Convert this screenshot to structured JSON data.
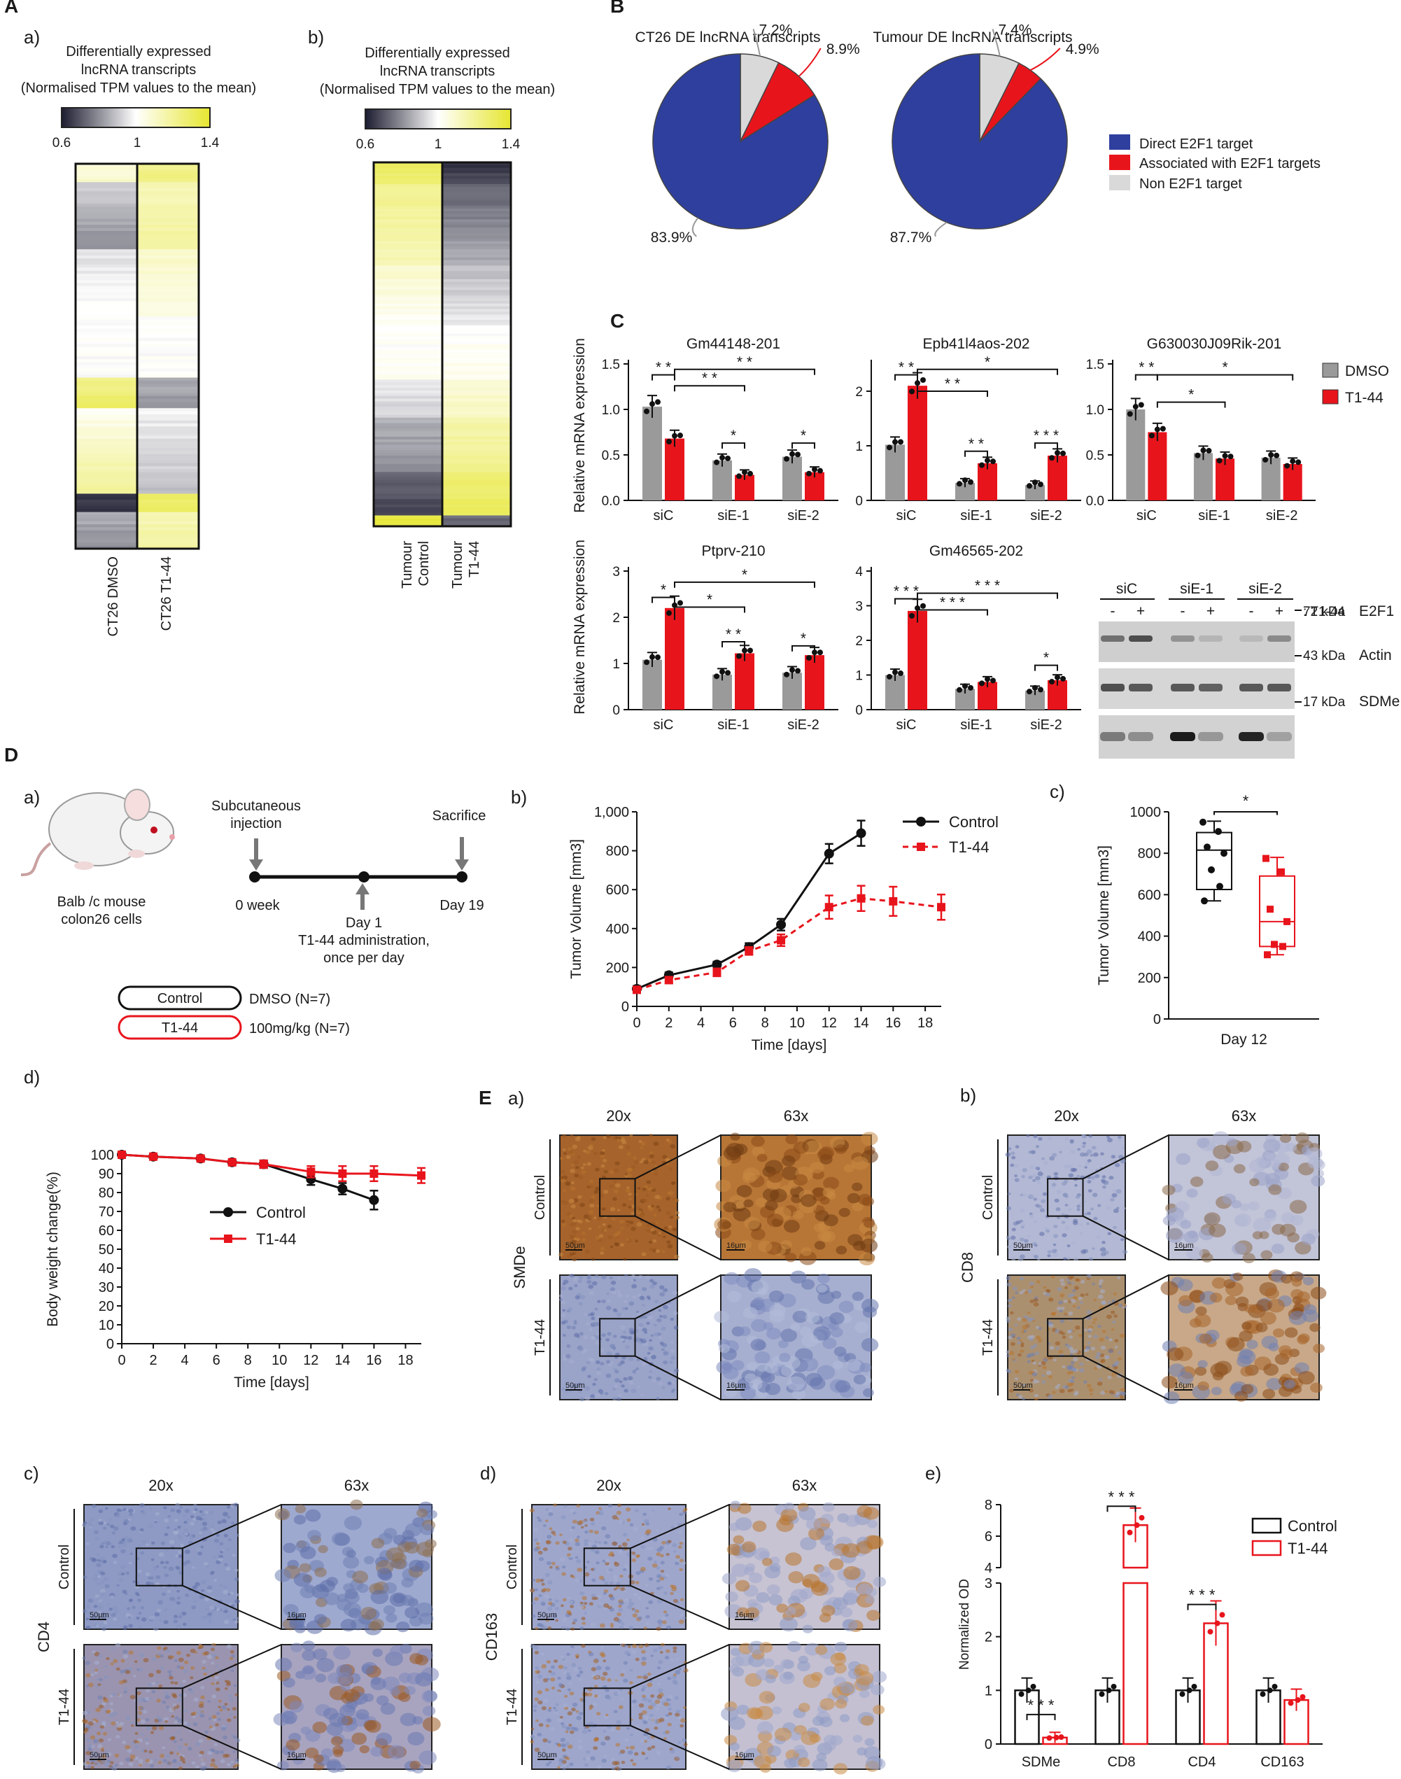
{
  "panel_letters": {
    "A": "A",
    "B": "B",
    "C": "C",
    "D": "D",
    "E": "E"
  },
  "sub_letters": {
    "a": "a)",
    "b": "b)",
    "c": "c)",
    "d": "d)",
    "e": "e)"
  },
  "colors": {
    "dmso": "#9a9a9a",
    "t144": "#e8141c",
    "e2f1_direct": "#2e3f9e",
    "e2f1_assoc": "#e8141c",
    "non_e2f1": "#d9d9d9"
  },
  "panelA": {
    "title_line1": "Differentially expressed",
    "title_line2": "lncRNA transcripts",
    "title_line3": "(Normalised TPM values to the mean)",
    "scale": [
      "0.6",
      "1",
      "1.4"
    ],
    "a_columns": [
      "CT26 DMSO",
      "CT26 T1-44"
    ],
    "b_columns": [
      [
        "Tumour",
        "Control"
      ],
      [
        "Tumour",
        "T1-44"
      ]
    ]
  },
  "panelB": {
    "chart_data": [
      {
        "type": "pie",
        "title": "CT26 DE lncRNA transcripts",
        "labels": [
          "Direct E2F1 target",
          "Associated with E2F1 targets",
          "Non E2F1 target"
        ],
        "values": [
          83.9,
          8.9,
          7.2
        ],
        "value_labels": [
          "83.9%",
          "8.9%",
          "7.2%"
        ]
      },
      {
        "type": "pie",
        "title": "Tumour DE lncRNA transcripts",
        "labels": [
          "Direct E2F1 target",
          "Associated with E2F1 targets",
          "Non E2F1 target"
        ],
        "values": [
          87.7,
          4.9,
          7.4
        ],
        "value_labels": [
          "87.7%",
          "4.9%",
          "7.4%"
        ]
      }
    ],
    "legend": [
      "Direct E2F1 target",
      "Associated with E2F1 targets",
      "Non E2F1 target"
    ]
  },
  "panelC": {
    "ylabel": "Relative mRNA expression",
    "legend": [
      "DMSO",
      "T1-44"
    ],
    "categories": [
      "siC",
      "siE-1",
      "siE-2"
    ],
    "chart_data": [
      {
        "type": "bar",
        "title": "Gm44148-201",
        "ylim": [
          0,
          1.5
        ],
        "ticks": [
          "0.0",
          "0.5",
          "1.0",
          "1.5"
        ],
        "categories": [
          "siC",
          "siE-1",
          "siE-2"
        ],
        "series": [
          {
            "name": "DMSO",
            "values": [
              1.03,
              0.44,
              0.48
            ]
          },
          {
            "name": "T1-44",
            "values": [
              0.68,
              0.28,
              0.31
            ]
          }
        ],
        "sig": [
          "* *",
          "* *",
          "* *",
          "*",
          "*"
        ]
      },
      {
        "type": "bar",
        "title": "Epb41l4aos-202",
        "ylim": [
          0,
          2.5
        ],
        "ticks": [
          "0",
          "1",
          "2"
        ],
        "categories": [
          "siC",
          "siE-1",
          "siE-2"
        ],
        "series": [
          {
            "name": "DMSO",
            "values": [
              1.02,
              0.32,
              0.28
            ]
          },
          {
            "name": "T1-44",
            "values": [
              2.1,
              0.68,
              0.82
            ]
          }
        ],
        "sig": [
          "* *",
          "* *",
          "*",
          "* *",
          "* * *"
        ]
      },
      {
        "type": "bar",
        "title": "G630030J09Rik-201",
        "ylim": [
          0,
          1.5
        ],
        "ticks": [
          "0.0",
          "0.5",
          "1.0",
          "1.5"
        ],
        "categories": [
          "siC",
          "siE-1",
          "siE-2"
        ],
        "series": [
          {
            "name": "DMSO",
            "values": [
              1.0,
              0.52,
              0.47
            ]
          },
          {
            "name": "T1-44",
            "values": [
              0.75,
              0.46,
              0.4
            ]
          }
        ],
        "sig": [
          "* *",
          "*",
          "*"
        ]
      },
      {
        "type": "bar",
        "title": "Ptprv-210",
        "ylim": [
          0,
          3
        ],
        "ticks": [
          "0",
          "1",
          "2",
          "3"
        ],
        "categories": [
          "siC",
          "siE-1",
          "siE-2"
        ],
        "series": [
          {
            "name": "DMSO",
            "values": [
              1.08,
              0.76,
              0.8
            ]
          },
          {
            "name": "T1-44",
            "values": [
              2.2,
              1.22,
              1.18
            ]
          }
        ],
        "sig": [
          "*",
          "*",
          "*",
          "* *",
          "*"
        ]
      },
      {
        "type": "bar",
        "title": "Gm46565-202",
        "ylim": [
          0,
          4
        ],
        "ticks": [
          "0",
          "1",
          "2",
          "3",
          "4"
        ],
        "categories": [
          "siC",
          "siE-1",
          "siE-2"
        ],
        "series": [
          {
            "name": "DMSO",
            "values": [
              1.0,
              0.6,
              0.55
            ]
          },
          {
            "name": "T1-44",
            "values": [
              2.85,
              0.8,
              0.85
            ]
          }
        ],
        "sig": [
          "* * *",
          "* * *",
          "* * *",
          "*"
        ]
      }
    ],
    "blot": {
      "groups": [
        "siC",
        "siE-1",
        "siE-2"
      ],
      "signs": [
        "-",
        "+",
        "-",
        "+",
        "-",
        "+"
      ],
      "treat": ": T1-44",
      "bands": [
        {
          "kda": "72 kDa",
          "name": "E2F1"
        },
        {
          "kda": "43 kDa",
          "name": "Actin"
        },
        {
          "kda": "17 kDa",
          "name": "SDMe"
        }
      ]
    }
  },
  "panelD": {
    "a": {
      "inj_line1": "Subcutaneous",
      "inj_line2": "injection",
      "sacrifice": "Sacrifice",
      "week0": "0 week",
      "day19": "Day 19",
      "day1": "Day 1",
      "admin_line1": "T1-44 administration,",
      "admin_line2": "once per day",
      "mouse_line1": "Balb /c mouse",
      "mouse_line2": "colon26 cells",
      "groups": [
        {
          "label": "Control",
          "desc": "DMSO (N=7)"
        },
        {
          "label": "T1-44",
          "desc": "100mg/kg (N=7)"
        }
      ]
    },
    "b": {
      "chart_data": {
        "type": "line",
        "xlabel": "Time [days]",
        "ylabel": "Tumor Volume [mm3]",
        "xlim": [
          0,
          19
        ],
        "ylim": [
          0,
          1000
        ],
        "xticks": [
          "0",
          "2",
          "4",
          "6",
          "8",
          "10",
          "12",
          "14",
          "16",
          "18"
        ],
        "yticks": [
          "0",
          "200",
          "400",
          "600",
          "800",
          "1,000"
        ],
        "series": [
          {
            "name": "Control",
            "x": [
              0,
              2,
              5,
              7,
              9,
              12,
              14
            ],
            "y": [
              90,
              160,
              215,
              305,
              420,
              785,
              890
            ],
            "err": [
              15,
              15,
              15,
              20,
              30,
              50,
              65
            ]
          },
          {
            "name": "T1-44",
            "x": [
              0,
              2,
              5,
              7,
              9,
              12,
              14,
              16,
              19
            ],
            "y": [
              85,
              135,
              175,
              285,
              340,
              510,
              555,
              540,
              510
            ],
            "err": [
              15,
              15,
              20,
              20,
              30,
              60,
              65,
              75,
              65
            ]
          }
        ]
      }
    },
    "c": {
      "chart_data": {
        "type": "box",
        "xlabel": "Day 12",
        "ylabel": "Tumor Volume [mm3]",
        "ylim": [
          0,
          1000
        ],
        "yticks": [
          "0",
          "200",
          "400",
          "600",
          "800",
          "1000"
        ],
        "sig": "*",
        "series": [
          {
            "name": "Control",
            "min": 570,
            "q1": 625,
            "median": 815,
            "q3": 900,
            "max": 955,
            "points": [
              570,
              640,
              720,
              800,
              830,
              905,
              950
            ]
          },
          {
            "name": "T1-44",
            "min": 310,
            "q1": 350,
            "median": 470,
            "q3": 690,
            "max": 780,
            "points": [
              310,
              350,
              360,
              470,
              530,
              710,
              775
            ]
          }
        ]
      }
    },
    "d": {
      "chart_data": {
        "type": "line",
        "xlabel": "Time [days]",
        "ylabel": "Body weight change(%)",
        "xlim": [
          0,
          19
        ],
        "ylim": [
          0,
          100
        ],
        "xticks": [
          "0",
          "2",
          "4",
          "6",
          "8",
          "10",
          "12",
          "14",
          "16",
          "18"
        ],
        "yticks": [
          "0",
          "10",
          "20",
          "30",
          "40",
          "50",
          "60",
          "70",
          "80",
          "90",
          "100"
        ],
        "series": [
          {
            "name": "Control",
            "x": [
              0,
              2,
              5,
              7,
              9,
              12,
              14,
              16
            ],
            "y": [
              100,
              99,
              98,
              96,
              95,
              87,
              82,
              76
            ],
            "err": [
              1,
              1,
              1,
              1,
              2,
              3,
              3,
              5
            ]
          },
          {
            "name": "T1-44",
            "x": [
              0,
              2,
              5,
              7,
              9,
              12,
              14,
              16,
              19
            ],
            "y": [
              100,
              99,
              98,
              96,
              95,
              91,
              90,
              90,
              89
            ],
            "err": [
              1,
              1,
              1,
              1,
              2,
              3,
              4,
              4,
              4
            ]
          }
        ]
      }
    }
  },
  "panelE": {
    "mag": [
      "20x",
      "63x"
    ],
    "rows": [
      "Control",
      "T1-44"
    ],
    "stains": {
      "a": "SMDe",
      "b": "CD8",
      "c": "CD4",
      "d": "CD163"
    },
    "scale20": "50μm",
    "scale63": "16μm",
    "e": {
      "chart_data": {
        "type": "bar",
        "ylabel": "Normalized OD",
        "categories": [
          "SDMe",
          "CD8",
          "CD4",
          "CD163"
        ],
        "yticks_low": [
          "0",
          "1",
          "2",
          "3"
        ],
        "yticks_high": [
          "4",
          "6",
          "8"
        ],
        "series": [
          {
            "name": "Control",
            "values": [
              1.0,
              1.0,
              1.0,
              1.0
            ]
          },
          {
            "name": "T1-44",
            "values": [
              0.12,
              6.7,
              2.25,
              0.82
            ]
          }
        ],
        "sig": [
          "* * *",
          "* * *",
          "* * *"
        ]
      }
    }
  }
}
